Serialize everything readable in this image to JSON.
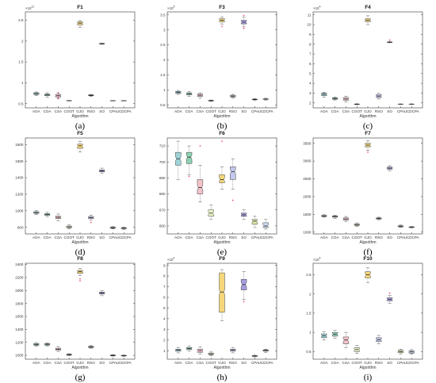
{
  "figure": {
    "panels": [
      {
        "title": "F1",
        "label": "(a)",
        "exponent": "×10",
        "exp_power": "11",
        "ticks": [
          "0.5",
          "1",
          "1.5",
          "2",
          "2.5"
        ],
        "xlabel": "Algorithm"
      },
      {
        "title": "F3",
        "label": "(b)",
        "exponent": "×10",
        "exp_power": "5",
        "ticks": [
          "0.5",
          "1",
          "1.5",
          "2",
          "2.5",
          "3",
          "3.5"
        ],
        "xlabel": "Algorithm"
      },
      {
        "title": "F4",
        "label": "(c)",
        "exponent": "×10",
        "exp_power": "4",
        "ticks": [
          "2",
          "3",
          "4",
          "5",
          "6",
          "7",
          "8",
          "9",
          "10",
          "11"
        ],
        "xlabel": "Algorithm"
      },
      {
        "title": "F5",
        "label": "(d)",
        "exponent": "",
        "exp_power": "",
        "ticks": [
          "800",
          "1000",
          "1200",
          "1400",
          "1600",
          "1800"
        ],
        "xlabel": "Algorithm"
      },
      {
        "title": "F6",
        "label": "(e)",
        "exponent": "",
        "exp_power": "",
        "ticks": [
          "660",
          "670",
          "680",
          "690",
          "700",
          "710"
        ],
        "xlabel": "Algorithm"
      },
      {
        "title": "F7",
        "label": "(f)",
        "exponent": "",
        "exp_power": "",
        "ticks": [
          "1000",
          "1500",
          "2000",
          "2500",
          "3000",
          "3500"
        ],
        "xlabel": "Algorithm"
      },
      {
        "title": "F8",
        "label": "(g)",
        "exponent": "",
        "exp_power": "",
        "ticks": [
          "1000",
          "1200",
          "1400",
          "1600",
          "1800",
          "2000",
          "2200",
          "2400"
        ],
        "xlabel": "Algorithm"
      },
      {
        "title": "F9",
        "label": "(h)",
        "exponent": "×10",
        "exp_power": "4",
        "ticks": [
          "1",
          "2",
          "3",
          "4",
          "5",
          "6",
          "7",
          "8",
          "9"
        ],
        "xlabel": "Algorithm"
      },
      {
        "title": "F10",
        "label": "(i)",
        "exponent": "×10",
        "exp_power": "4",
        "ticks": [
          "0.5",
          "1",
          "1.5",
          "2",
          "2.5"
        ],
        "xlabel": "Algorithm"
      }
    ]
  },
  "chart_data": [
    {
      "type": "box",
      "title": "F1",
      "xlabel": "Algorithm",
      "ylabel": "",
      "ylim": [
        0.4,
        2.7
      ],
      "scale_note": "×10^11",
      "categories": [
        "AOA",
        "COA",
        "CSA",
        "COOT",
        "GJO",
        "RSO",
        "SO",
        "CPA",
        "UCDCPA"
      ],
      "boxes": [
        {
          "min": 0.69,
          "q1": 0.72,
          "median": 0.74,
          "q3": 0.76,
          "max": 0.78,
          "outliers": []
        },
        {
          "min": 0.65,
          "q1": 0.69,
          "median": 0.71,
          "q3": 0.73,
          "max": 0.76,
          "outliers": []
        },
        {
          "min": 0.62,
          "q1": 0.66,
          "median": 0.69,
          "q3": 0.72,
          "max": 0.75,
          "outliers": [
            0.63,
            0.76
          ]
        },
        {
          "min": 0.565,
          "q1": 0.57,
          "median": 0.572,
          "q3": 0.574,
          "max": 0.578,
          "outliers": []
        },
        {
          "min": 2.33,
          "q1": 2.39,
          "median": 2.43,
          "q3": 2.46,
          "max": 2.49,
          "outliers": []
        },
        {
          "min": 0.67,
          "q1": 0.69,
          "median": 0.7,
          "q3": 0.71,
          "max": 0.72,
          "outliers": []
        },
        {
          "min": 1.92,
          "q1": 1.93,
          "median": 1.94,
          "q3": 1.945,
          "max": 1.95,
          "outliers": []
        },
        {
          "min": 0.565,
          "q1": 0.568,
          "median": 0.57,
          "q3": 0.572,
          "max": 0.575,
          "outliers": []
        },
        {
          "min": 0.565,
          "q1": 0.568,
          "median": 0.57,
          "q3": 0.572,
          "max": 0.575,
          "outliers": []
        }
      ]
    },
    {
      "type": "box",
      "title": "F3",
      "xlabel": "Algorithm",
      "ylabel": "",
      "ylim": [
        0.4,
        3.6
      ],
      "scale_note": "×10^5",
      "categories": [
        "AOA",
        "COA",
        "CSA",
        "COOT",
        "GJO",
        "RSO",
        "SO",
        "CPA",
        "UCDCPA"
      ],
      "boxes": [
        {
          "min": 0.85,
          "q1": 0.88,
          "median": 0.92,
          "q3": 0.95,
          "max": 0.98,
          "outliers": []
        },
        {
          "min": 0.78,
          "q1": 0.83,
          "median": 0.87,
          "q3": 0.9,
          "max": 0.94,
          "outliers": []
        },
        {
          "min": 0.72,
          "q1": 0.78,
          "median": 0.82,
          "q3": 0.86,
          "max": 0.9,
          "outliers": []
        },
        {
          "min": 0.62,
          "q1": 0.63,
          "median": 0.64,
          "q3": 0.65,
          "max": 0.66,
          "outliers": []
        },
        {
          "min": 3.2,
          "q1": 3.27,
          "median": 3.32,
          "q3": 3.37,
          "max": 3.43,
          "outliers": [
            3.12
          ]
        },
        {
          "min": 0.72,
          "q1": 0.76,
          "median": 0.79,
          "q3": 0.82,
          "max": 0.85,
          "outliers": []
        },
        {
          "min": 3.1,
          "q1": 3.2,
          "median": 3.26,
          "q3": 3.32,
          "max": 3.42,
          "outliers": [
            3.05,
            3.48
          ]
        },
        {
          "min": 0.65,
          "q1": 0.67,
          "median": 0.68,
          "q3": 0.69,
          "max": 0.71,
          "outliers": []
        },
        {
          "min": 0.66,
          "q1": 0.68,
          "median": 0.69,
          "q3": 0.7,
          "max": 0.72,
          "outliers": []
        }
      ]
    },
    {
      "type": "box",
      "title": "F4",
      "xlabel": "Algorithm",
      "ylabel": "",
      "ylim": [
        1.5,
        11.3
      ],
      "scale_note": "×10^4",
      "categories": [
        "AOA",
        "COA",
        "CSA",
        "COOT",
        "GJO",
        "RSO",
        "SO",
        "CPA",
        "UCDCPA"
      ],
      "boxes": [
        {
          "min": 2.6,
          "q1": 2.75,
          "median": 2.88,
          "q3": 3.0,
          "max": 3.1,
          "outliers": []
        },
        {
          "min": 2.3,
          "q1": 2.38,
          "median": 2.45,
          "q3": 2.52,
          "max": 2.6,
          "outliers": []
        },
        {
          "min": 2.1,
          "q1": 2.28,
          "median": 2.4,
          "q3": 2.55,
          "max": 2.7,
          "outliers": []
        },
        {
          "min": 1.82,
          "q1": 1.85,
          "median": 1.87,
          "q3": 1.89,
          "max": 1.92,
          "outliers": []
        },
        {
          "min": 10.0,
          "q1": 10.3,
          "median": 10.45,
          "q3": 10.6,
          "max": 10.9,
          "outliers": []
        },
        {
          "min": 2.4,
          "q1": 2.55,
          "median": 2.7,
          "q3": 2.85,
          "max": 3.0,
          "outliers": []
        },
        {
          "min": 8.15,
          "q1": 8.18,
          "median": 8.2,
          "q3": 8.23,
          "max": 8.26,
          "outliers": [
            8.4
          ]
        },
        {
          "min": 1.85,
          "q1": 1.87,
          "median": 1.88,
          "q3": 1.89,
          "max": 1.9,
          "outliers": []
        },
        {
          "min": 1.85,
          "q1": 1.87,
          "median": 1.88,
          "q3": 1.89,
          "max": 1.9,
          "outliers": []
        }
      ]
    },
    {
      "type": "box",
      "title": "F5",
      "xlabel": "Algorithm",
      "ylabel": "",
      "ylim": [
        720,
        1880
      ],
      "scale_note": "",
      "categories": [
        "AOA",
        "COA",
        "CSA",
        "COOT",
        "GJO",
        "RSO",
        "SO",
        "CPA",
        "UCDCPA"
      ],
      "boxes": [
        {
          "min": 955,
          "q1": 968,
          "median": 978,
          "q3": 988,
          "max": 1000,
          "outliers": []
        },
        {
          "min": 930,
          "q1": 945,
          "median": 955,
          "q3": 965,
          "max": 980,
          "outliers": []
        },
        {
          "min": 880,
          "q1": 905,
          "median": 920,
          "q3": 935,
          "max": 960,
          "outliers": []
        },
        {
          "min": 780,
          "q1": 795,
          "median": 805,
          "q3": 815,
          "max": 830,
          "outliers": []
        },
        {
          "min": 1710,
          "q1": 1755,
          "median": 1785,
          "q3": 1805,
          "max": 1840,
          "outliers": []
        },
        {
          "min": 890,
          "q1": 905,
          "median": 918,
          "q3": 930,
          "max": 945,
          "outliers": [
            860
          ]
        },
        {
          "min": 1450,
          "q1": 1470,
          "median": 1482,
          "q3": 1495,
          "max": 1515,
          "outliers": []
        },
        {
          "min": 780,
          "q1": 788,
          "median": 795,
          "q3": 802,
          "max": 810,
          "outliers": []
        },
        {
          "min": 775,
          "q1": 783,
          "median": 790,
          "q3": 796,
          "max": 802,
          "outliers": []
        }
      ]
    },
    {
      "type": "box",
      "title": "F6",
      "xlabel": "Algorithm",
      "ylabel": "",
      "ylim": [
        655,
        715
      ],
      "scale_note": "",
      "categories": [
        "AOA",
        "COA",
        "CSA",
        "COOT",
        "GJO",
        "RSO",
        "SO",
        "CPA",
        "UCDCPA"
      ],
      "boxes": [
        {
          "min": 689,
          "q1": 698,
          "median": 702,
          "q3": 706,
          "max": 713,
          "outliers": []
        },
        {
          "min": 692,
          "q1": 699,
          "median": 703,
          "q3": 706,
          "max": 710,
          "outliers": [
            691
          ]
        },
        {
          "min": 675,
          "q1": 680,
          "median": 684,
          "q3": 689,
          "max": 698,
          "outliers": [
            710
          ]
        },
        {
          "min": 664,
          "q1": 666,
          "median": 668,
          "q3": 670,
          "max": 673,
          "outliers": []
        },
        {
          "min": 683,
          "q1": 687,
          "median": 689,
          "q3": 692,
          "max": 697,
          "outliers": [
            713
          ]
        },
        {
          "min": 683,
          "q1": 689,
          "median": 694,
          "q3": 697,
          "max": 702,
          "outliers": [
            676
          ]
        },
        {
          "min": 664,
          "q1": 666,
          "median": 667,
          "q3": 668,
          "max": 670,
          "outliers": []
        },
        {
          "min": 659,
          "q1": 661,
          "median": 663,
          "q3": 664,
          "max": 666,
          "outliers": []
        },
        {
          "min": 658,
          "q1": 659,
          "median": 660,
          "q3": 662,
          "max": 664,
          "outliers": []
        }
      ]
    },
    {
      "type": "box",
      "title": "F7",
      "xlabel": "Algorithm",
      "ylabel": "",
      "ylim": [
        950,
        3650
      ],
      "scale_note": "",
      "categories": [
        "AOA",
        "COA",
        "CSA",
        "COOT",
        "GJO",
        "RSO",
        "SO",
        "CPA",
        "UCDCPA"
      ],
      "boxes": [
        {
          "min": 1420,
          "q1": 1440,
          "median": 1455,
          "q3": 1470,
          "max": 1490,
          "outliers": []
        },
        {
          "min": 1390,
          "q1": 1420,
          "median": 1440,
          "q3": 1455,
          "max": 1475,
          "outliers": []
        },
        {
          "min": 1300,
          "q1": 1340,
          "median": 1370,
          "q3": 1400,
          "max": 1440,
          "outliers": []
        },
        {
          "min": 1160,
          "q1": 1190,
          "median": 1210,
          "q3": 1230,
          "max": 1260,
          "outliers": []
        },
        {
          "min": 3300,
          "q1": 3400,
          "median": 3450,
          "q3": 3500,
          "max": 3570,
          "outliers": [
            3250
          ]
        },
        {
          "min": 1350,
          "q1": 1370,
          "median": 1385,
          "q3": 1400,
          "max": 1420,
          "outliers": []
        },
        {
          "min": 2730,
          "q1": 2770,
          "median": 2800,
          "q3": 2830,
          "max": 2870,
          "outliers": []
        },
        {
          "min": 1130,
          "q1": 1150,
          "median": 1165,
          "q3": 1180,
          "max": 1200,
          "outliers": []
        },
        {
          "min": 1120,
          "q1": 1130,
          "median": 1140,
          "q3": 1150,
          "max": 1160,
          "outliers": []
        }
      ]
    },
    {
      "type": "box",
      "title": "F8",
      "xlabel": "Algorithm",
      "ylabel": "",
      "ylim": [
        940,
        2420
      ],
      "scale_note": "",
      "categories": [
        "AOA",
        "COA",
        "CSA",
        "COOT",
        "GJO",
        "RSO",
        "SO",
        "CPA",
        "UCDCPA"
      ],
      "boxes": [
        {
          "min": 1140,
          "q1": 1155,
          "median": 1168,
          "q3": 1180,
          "max": 1195,
          "outliers": []
        },
        {
          "min": 1145,
          "q1": 1158,
          "median": 1170,
          "q3": 1180,
          "max": 1192,
          "outliers": []
        },
        {
          "min": 1060,
          "q1": 1080,
          "median": 1095,
          "q3": 1110,
          "max": 1135,
          "outliers": []
        },
        {
          "min": 995,
          "q1": 1003,
          "median": 1010,
          "q3": 1017,
          "max": 1025,
          "outliers": []
        },
        {
          "min": 2230,
          "q1": 2265,
          "median": 2290,
          "q3": 2310,
          "max": 2340,
          "outliers": [
            2150,
            2180
          ]
        },
        {
          "min": 1110,
          "q1": 1120,
          "median": 1130,
          "q3": 1138,
          "max": 1150,
          "outliers": []
        },
        {
          "min": 1920,
          "q1": 1945,
          "median": 1960,
          "q3": 1975,
          "max": 1995,
          "outliers": []
        },
        {
          "min": 988,
          "q1": 993,
          "median": 998,
          "q3": 1003,
          "max": 1010,
          "outliers": []
        },
        {
          "min": 985,
          "q1": 990,
          "median": 995,
          "q3": 1000,
          "max": 1005,
          "outliers": []
        }
      ]
    },
    {
      "type": "box",
      "title": "F9",
      "xlabel": "Algorithm",
      "ylabel": "",
      "ylim": [
        0.2,
        9.2
      ],
      "scale_note": "×10^4",
      "categories": [
        "AOA",
        "COA",
        "CSA",
        "COOT",
        "GJO",
        "RSO",
        "SO",
        "CPA",
        "UCDCPA"
      ],
      "boxes": [
        {
          "min": 0.8,
          "q1": 0.95,
          "median": 1.05,
          "q3": 1.15,
          "max": 1.3,
          "outliers": []
        },
        {
          "min": 0.95,
          "q1": 1.1,
          "median": 1.2,
          "q3": 1.3,
          "max": 1.45,
          "outliers": []
        },
        {
          "min": 0.7,
          "q1": 0.85,
          "median": 1.0,
          "q3": 1.15,
          "max": 1.35,
          "outliers": []
        },
        {
          "min": 0.55,
          "q1": 0.62,
          "median": 0.7,
          "q3": 0.78,
          "max": 0.88,
          "outliers": []
        },
        {
          "min": 3.8,
          "q1": 4.6,
          "median": 6.5,
          "q3": 8.3,
          "max": 8.6,
          "outliers": []
        },
        {
          "min": 0.8,
          "q1": 0.95,
          "median": 1.05,
          "q3": 1.15,
          "max": 1.3,
          "outliers": []
        },
        {
          "min": 5.8,
          "q1": 6.7,
          "median": 7.2,
          "q3": 7.7,
          "max": 8.4,
          "outliers": [
            5.6
          ]
        },
        {
          "min": 0.42,
          "q1": 0.46,
          "median": 0.5,
          "q3": 0.54,
          "max": 0.58,
          "outliers": []
        },
        {
          "min": 0.85,
          "q1": 0.95,
          "median": 1.02,
          "q3": 1.08,
          "max": 1.15,
          "outliers": []
        }
      ]
    },
    {
      "type": "box",
      "title": "F10",
      "xlabel": "Algorithm",
      "ylabel": "",
      "ylim": [
        0.3,
        2.8
      ],
      "scale_note": "×10^4",
      "categories": [
        "AOA",
        "COA",
        "CSA",
        "COOT",
        "GJO",
        "RSO",
        "SO",
        "CPA",
        "UCDCPA"
      ],
      "boxes": [
        {
          "min": 0.8,
          "q1": 0.86,
          "median": 0.91,
          "q3": 0.96,
          "max": 1.02,
          "outliers": []
        },
        {
          "min": 0.85,
          "q1": 0.9,
          "median": 0.95,
          "q3": 1.0,
          "max": 1.05,
          "outliers": []
        },
        {
          "min": 0.6,
          "q1": 0.7,
          "median": 0.8,
          "q3": 0.88,
          "max": 1.0,
          "outliers": []
        },
        {
          "min": 0.45,
          "q1": 0.5,
          "median": 0.55,
          "q3": 0.6,
          "max": 0.66,
          "outliers": []
        },
        {
          "min": 2.3,
          "q1": 2.42,
          "median": 2.5,
          "q3": 2.58,
          "max": 2.68,
          "outliers": []
        },
        {
          "min": 0.7,
          "q1": 0.76,
          "median": 0.81,
          "q3": 0.86,
          "max": 0.92,
          "outliers": []
        },
        {
          "min": 1.75,
          "q1": 1.82,
          "median": 1.86,
          "q3": 1.9,
          "max": 1.96,
          "outliers": [
            2.02
          ]
        },
        {
          "min": 0.44,
          "q1": 0.47,
          "median": 0.5,
          "q3": 0.53,
          "max": 0.56,
          "outliers": []
        },
        {
          "min": 0.43,
          "q1": 0.46,
          "median": 0.49,
          "q3": 0.52,
          "max": 0.55,
          "outliers": []
        }
      ]
    }
  ],
  "style": {
    "colors": [
      "#9fd3d8",
      "#8fd1b4",
      "#f2c4c9",
      "#e8f5c8",
      "#f5d77a",
      "#c4c8ec",
      "#a79ee0",
      "#dde6a8",
      "#c9d8ee"
    ],
    "axis_color": "#333333",
    "outlier_color": "#e8326b",
    "median_color": "#222222"
  }
}
